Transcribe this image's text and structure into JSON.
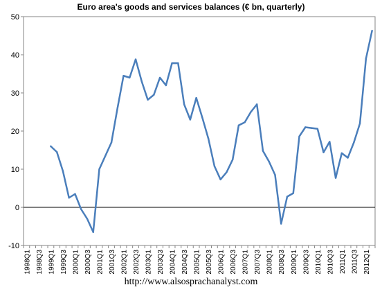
{
  "chart_data": {
    "type": "line",
    "title": "Euro area's goods and services balances (€ bn, quarterly)",
    "xlabel": "",
    "ylabel": "",
    "ylim": [
      -10,
      50
    ],
    "yticks": [
      "50",
      "40",
      "30",
      "20",
      "10",
      "0",
      "-10"
    ],
    "x_tick_labels": [
      "1998Q1",
      "1998Q3",
      "1999Q1",
      "1999Q3",
      "2000Q1",
      "2000Q3",
      "2001Q1",
      "2001Q3",
      "2002Q1",
      "2002Q3",
      "2003Q1",
      "2003Q3",
      "2004Q1",
      "2004Q3",
      "2005Q1",
      "2005Q3",
      "2006Q1",
      "2006Q3",
      "2007Q1",
      "2007Q3",
      "2008Q1",
      "2008Q3",
      "2009Q1",
      "2009Q3",
      "2010Q1",
      "2010Q3",
      "2011Q1",
      "2011Q3",
      "2012Q1"
    ],
    "categories": [
      "1998Q1",
      "1998Q2",
      "1998Q3",
      "1998Q4",
      "1999Q1",
      "1999Q2",
      "1999Q3",
      "1999Q4",
      "2000Q1",
      "2000Q2",
      "2000Q3",
      "2000Q4",
      "2001Q1",
      "2001Q2",
      "2001Q3",
      "2001Q4",
      "2002Q1",
      "2002Q2",
      "2002Q3",
      "2002Q4",
      "2003Q1",
      "2003Q2",
      "2003Q3",
      "2003Q4",
      "2004Q1",
      "2004Q2",
      "2004Q3",
      "2004Q4",
      "2005Q1",
      "2005Q2",
      "2005Q3",
      "2005Q4",
      "2006Q1",
      "2006Q2",
      "2006Q3",
      "2006Q4",
      "2007Q1",
      "2007Q2",
      "2007Q3",
      "2007Q4",
      "2008Q1",
      "2008Q2",
      "2008Q3",
      "2008Q4",
      "2009Q1",
      "2009Q2",
      "2009Q3",
      "2009Q4",
      "2010Q1",
      "2010Q2",
      "2010Q3",
      "2010Q4",
      "2011Q1",
      "2011Q2",
      "2011Q3",
      "2011Q4",
      "2012Q1",
      "2012Q2"
    ],
    "series": [
      {
        "values": [
          null,
          null,
          null,
          null,
          16.0,
          14.5,
          9.5,
          2.5,
          3.5,
          -0.5,
          -3.0,
          -6.5,
          10.0,
          13.5,
          17.0,
          26.0,
          34.5,
          34.0,
          38.8,
          33.0,
          28.2,
          29.5,
          34.0,
          32.0,
          37.8,
          37.8,
          27.0,
          23.0,
          28.7,
          23.5,
          18.0,
          10.8,
          7.3,
          9.2,
          12.5,
          21.5,
          22.3,
          25.0,
          27.0,
          14.8,
          12.0,
          8.5,
          -4.3,
          2.8,
          3.7,
          18.6,
          21.0,
          20.8,
          20.6,
          14.4,
          17.2,
          7.7,
          14.2,
          13.0,
          17.0,
          22.0,
          39.0,
          46.3
        ]
      }
    ],
    "line_color": "#4a7ebb",
    "grid": false,
    "legend": "none",
    "zero_line": true,
    "source_text": "http://www.alsosprachanalyst.com"
  }
}
